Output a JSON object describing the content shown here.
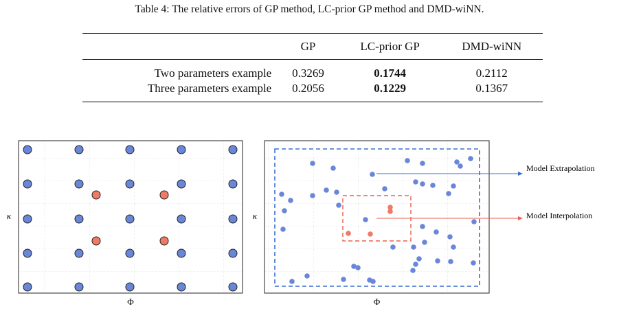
{
  "caption": "Table 4: The relative errors of GP method, LC-prior GP method and DMD-wiNN.",
  "table": {
    "header": [
      "",
      "GP",
      "LC-prior GP",
      "DMD-wiNN"
    ],
    "rows": [
      [
        "Two parameters example",
        "0.3269",
        "0.1744",
        "0.2112"
      ],
      [
        "Three parameters example",
        "0.2056",
        "0.1229",
        "0.1367"
      ]
    ]
  },
  "charts": [
    {
      "type": "scatter",
      "xlabel": "Φ",
      "ylabel": "κ",
      "xlim": [
        0,
        326
      ],
      "ylim": [
        0,
        222
      ],
      "series": [
        {
          "color": "#6a86d8",
          "x": [
            13,
            88,
            162,
            237,
            312,
            13,
            88,
            162,
            237,
            312,
            13,
            88,
            162,
            237,
            312,
            13,
            88,
            162,
            237,
            312,
            13,
            88,
            162,
            237,
            312
          ],
          "y": [
            209,
            209,
            209,
            209,
            209,
            159,
            159,
            159,
            159,
            159,
            108,
            108,
            108,
            108,
            108,
            58,
            58,
            58,
            58,
            58,
            9,
            9,
            9,
            9,
            9
          ]
        },
        {
          "color": "#ee7b66",
          "x": [
            113,
            212,
            113,
            212
          ],
          "y": [
            143,
            143,
            76,
            76
          ]
        }
      ]
    },
    {
      "type": "scatter",
      "xlabel": "Φ",
      "ylabel": "κ",
      "xlim": [
        0,
        327
      ],
      "ylim": [
        0,
        222
      ],
      "annotations": [
        "Model Extrapolation",
        "Model Interpolation"
      ],
      "series": [
        {
          "color": "#6a86d8",
          "x": [
            70,
            100,
            157,
            208,
            230,
            280,
            300,
            285,
            220,
            230,
            245,
            275,
            268,
            175,
            90,
            105,
            25,
            38,
            70,
            108,
            29,
            27,
            147,
            230,
            305,
            250,
            270,
            217,
            233,
            187,
            275,
            252,
            271,
            225,
            220,
            216,
            304,
            130,
            136,
            62,
            115,
            153,
            158,
            40
          ],
          "y": [
            189,
            182,
            173,
            193,
            189,
            191,
            196,
            185,
            162,
            159,
            157,
            156,
            145,
            152,
            150,
            147,
            144,
            135,
            142,
            128,
            120,
            93,
            107,
            97,
            104,
            89,
            82,
            67,
            74,
            67,
            67,
            47,
            46,
            50,
            42,
            33,
            44,
            39,
            37,
            25,
            20,
            19,
            17,
            17
          ]
        },
        {
          "color": "#ee7b66",
          "x": [
            183,
            183,
            122,
            154
          ],
          "y": [
            125,
            119,
            87,
            86
          ]
        }
      ]
    }
  ]
}
